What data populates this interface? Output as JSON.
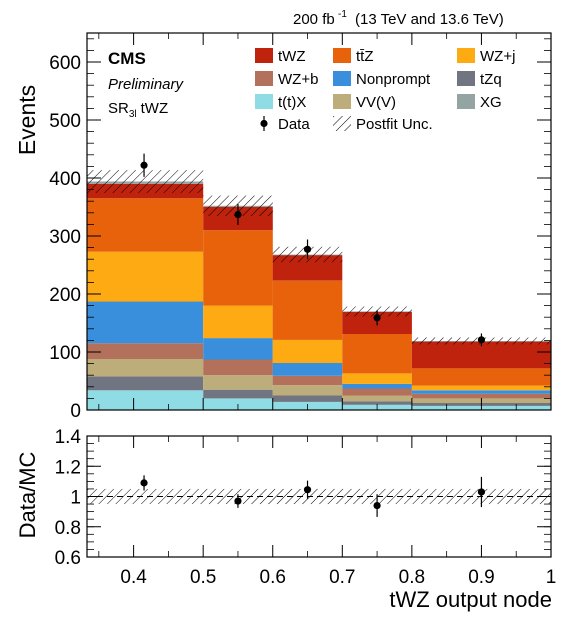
{
  "header": {
    "lumi": "200 fb",
    "lumi_exponent": "-1",
    "energy": "(13 TeV and 13.6 TeV)"
  },
  "labels": {
    "experiment": "CMS",
    "status": "Preliminary",
    "region_main": "SR",
    "region_sub": "3l",
    "region_suffix": "tWZ"
  },
  "colors": {
    "tWZ": "#c0230d",
    "ttZ": "#e8620b",
    "WZj": "#fdaa13",
    "WZb": "#b3705b",
    "Nonprompt": "#3a8fdc",
    "tZq": "#717581",
    "ttX": "#90dce4",
    "VVV": "#bdad7b",
    "XG": "#94a4a2"
  },
  "chart_data": [
    {
      "type": "bar",
      "stacked": true,
      "bin_edges": [
        0.333,
        0.5,
        0.6,
        0.7,
        0.8,
        1.0
      ],
      "series": [
        {
          "name": "t(t)X",
          "key": "ttX",
          "values": [
            34,
            20,
            14,
            9,
            7
          ]
        },
        {
          "name": "tZq",
          "key": "tZq",
          "values": [
            24,
            15,
            11,
            6,
            5
          ]
        },
        {
          "name": "VV(V)",
          "key": "VVV",
          "values": [
            30,
            25,
            18,
            10,
            8
          ]
        },
        {
          "name": "WZ+b",
          "key": "WZb",
          "values": [
            27,
            27,
            16,
            12,
            8
          ]
        },
        {
          "name": "Nonprompt",
          "key": "Nonprompt",
          "values": [
            72,
            37,
            22,
            8,
            6
          ]
        },
        {
          "name": "WZ+j",
          "key": "WZj",
          "values": [
            86,
            56,
            40,
            18,
            8
          ]
        },
        {
          "name": "tt̄Z",
          "key": "ttZ",
          "values": [
            92,
            130,
            102,
            68,
            30
          ]
        },
        {
          "name": "tWZ",
          "key": "tWZ",
          "values": [
            25,
            40,
            44,
            38,
            46
          ]
        },
        {
          "name": "XG",
          "key": "XG",
          "values": [
            4,
            2,
            1,
            1,
            1
          ]
        }
      ],
      "data": {
        "name": "Data",
        "x": [
          0.415,
          0.55,
          0.65,
          0.75,
          0.9
        ],
        "y": [
          422,
          337,
          277,
          159,
          121
        ],
        "err": [
          20,
          18,
          17,
          13,
          11
        ]
      },
      "uncertainty": {
        "name": "Postfit Unc.",
        "rel": 0.05
      },
      "xlim": [
        0.333,
        1.0
      ],
      "ylim": [
        0,
        650
      ],
      "yticks": [
        0,
        100,
        200,
        300,
        400,
        500,
        600
      ],
      "ylabel": "Events",
      "legend_order": [
        "tWZ",
        "ttZ",
        "WZj",
        "WZb",
        "Nonprompt",
        "tZq",
        "ttX",
        "VVV",
        "XG",
        "Data",
        "Postfit Unc."
      ]
    },
    {
      "type": "scatter",
      "ratio": true,
      "x": [
        0.415,
        0.55,
        0.65,
        0.75,
        0.9
      ],
      "y": [
        1.09,
        0.97,
        1.045,
        0.94,
        1.03
      ],
      "err": [
        0.05,
        0.045,
        0.06,
        0.075,
        0.1
      ],
      "band": [
        0.95,
        1.05
      ],
      "xlim": [
        0.333,
        1.0
      ],
      "ylim": [
        0.6,
        1.4
      ],
      "yticks": [
        0.6,
        0.8,
        1,
        1.2,
        1.4
      ],
      "xticks": [
        0.4,
        0.5,
        0.6,
        0.7,
        0.8,
        0.9,
        1
      ],
      "ylabel": "Data/MC",
      "xlabel": "tWZ output node"
    }
  ]
}
